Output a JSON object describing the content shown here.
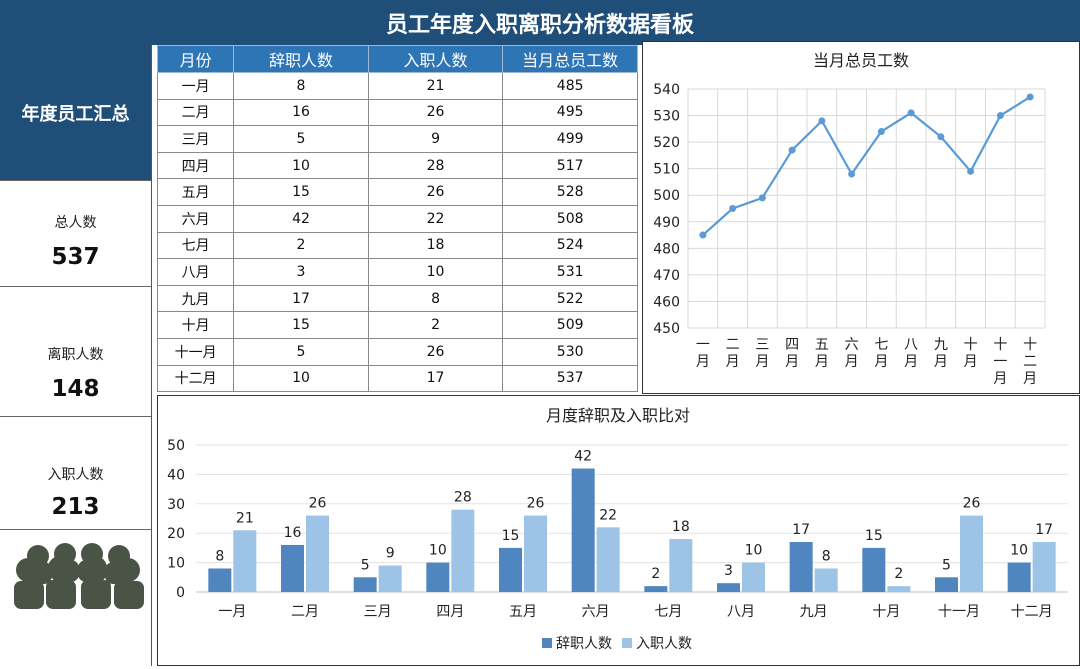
{
  "title": "员工年度入职离职分析数据看板",
  "summary": {
    "header": "年度员工汇总",
    "total_label": "总人数",
    "total_value": "537",
    "resign_label": "离职人数",
    "resign_value": "148",
    "hire_label": "入职人数",
    "hire_value": "213"
  },
  "table": {
    "headers": [
      "月份",
      "辞职人数",
      "入职人数",
      "当月总员工数"
    ],
    "rows": [
      [
        "一月",
        "8",
        "21",
        "485"
      ],
      [
        "二月",
        "16",
        "26",
        "495"
      ],
      [
        "三月",
        "5",
        "9",
        "499"
      ],
      [
        "四月",
        "10",
        "28",
        "517"
      ],
      [
        "五月",
        "15",
        "26",
        "528"
      ],
      [
        "六月",
        "42",
        "22",
        "508"
      ],
      [
        "七月",
        "2",
        "18",
        "524"
      ],
      [
        "八月",
        "3",
        "10",
        "531"
      ],
      [
        "九月",
        "17",
        "8",
        "522"
      ],
      [
        "十月",
        "15",
        "2",
        "509"
      ],
      [
        "十一月",
        "5",
        "26",
        "530"
      ],
      [
        "十二月",
        "10",
        "17",
        "537"
      ]
    ]
  },
  "colors": {
    "header_blue": "#1f4e79",
    "table_header": "#2e75b6",
    "line": "#5b9bd5",
    "bar_resign": "#4f86c0",
    "bar_hire": "#9dc3e6",
    "icon": "#4a5446"
  },
  "icons": {
    "people": "group-of-people-icon"
  },
  "chart_data": [
    {
      "type": "line",
      "title": "当月总员工数",
      "categories": [
        "一月",
        "二月",
        "三月",
        "四月",
        "五月",
        "六月",
        "七月",
        "八月",
        "九月",
        "十月",
        "十一月",
        "十二月"
      ],
      "values": [
        485,
        495,
        499,
        517,
        528,
        508,
        524,
        531,
        522,
        509,
        530,
        537
      ],
      "ylim": [
        450,
        540
      ],
      "ytick_step": 10,
      "grid": true
    },
    {
      "type": "bar",
      "title": "月度辞职及入职比对",
      "categories": [
        "一月",
        "二月",
        "三月",
        "四月",
        "五月",
        "六月",
        "七月",
        "八月",
        "九月",
        "十月",
        "十一月",
        "十二月"
      ],
      "series": [
        {
          "name": "辞职人数",
          "values": [
            8,
            16,
            5,
            10,
            15,
            42,
            2,
            3,
            17,
            15,
            5,
            10
          ]
        },
        {
          "name": "入职人数",
          "values": [
            21,
            26,
            9,
            28,
            26,
            22,
            18,
            10,
            8,
            2,
            26,
            17
          ]
        }
      ],
      "ylim": [
        0,
        50
      ],
      "ytick_step": 10,
      "legend": "bottom",
      "data_labels": true
    }
  ]
}
